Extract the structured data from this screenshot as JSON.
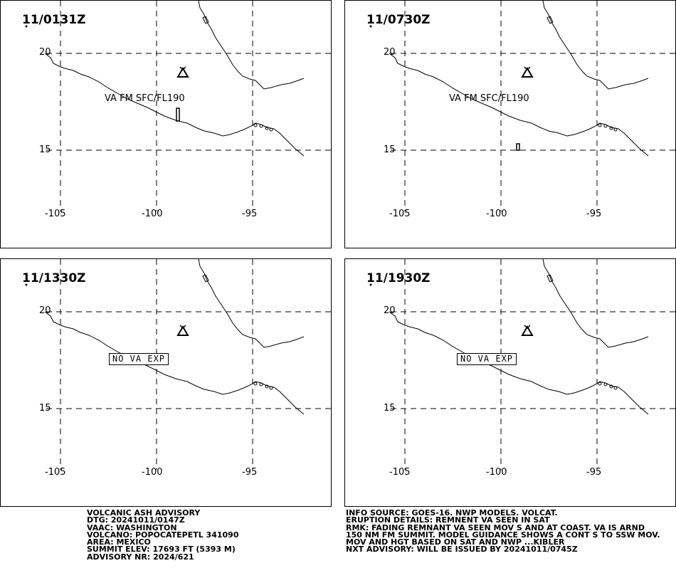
{
  "panels": [
    {
      "timestamp": "11/0131Z",
      "va_label": "VA FM SFC/FL190",
      "nova_label": "",
      "polygon": "tall"
    },
    {
      "timestamp": "11/0730Z",
      "va_label": "VA FM SFC/FL190",
      "nova_label": "",
      "polygon": "small"
    },
    {
      "timestamp": "11/1330Z",
      "va_label": "",
      "nova_label": "NO VA EXP",
      "polygon": "none"
    },
    {
      "timestamp": "11/1930Z",
      "va_label": "",
      "nova_label": "NO VA EXP",
      "polygon": "none"
    }
  ],
  "grid": {
    "lat_labels": [
      "20",
      "15"
    ],
    "lon_labels": [
      "-105",
      "-100",
      "-95"
    ]
  },
  "volcano_icon": "volcano-triangle-icon",
  "advisory_left": [
    "VOLCANIC ASH ADVISORY",
    "DTG: 20241011/0147Z",
    "VAAC: WASHINGTON",
    "VOLCANO: POPOCATEPETL 341090",
    "AREA: MEXICO",
    "SUMMIT ELEV: 17693 FT (5393 M)",
    "ADVISORY NR: 2024/621"
  ],
  "advisory_right": [
    "INFO SOURCE: GOES-16. NWP MODELS. VOLCAT.",
    "ERUPTION DETAILS: REMNENT VA SEEN IN SAT",
    "RMK: FADING REMNANT VA SEEN MOV S AND AT COAST. VA IS ARND",
    "150 NM FM SUMMIT. MODEL GUIDANCE SHOWS A CONT S TO SSW MOV.",
    "MOV AND HGT BASED ON SAT AND NWP ...KIBLER",
    "NXT ADVISORY: WILL BE ISSUED BY 20241011/0745Z"
  ]
}
